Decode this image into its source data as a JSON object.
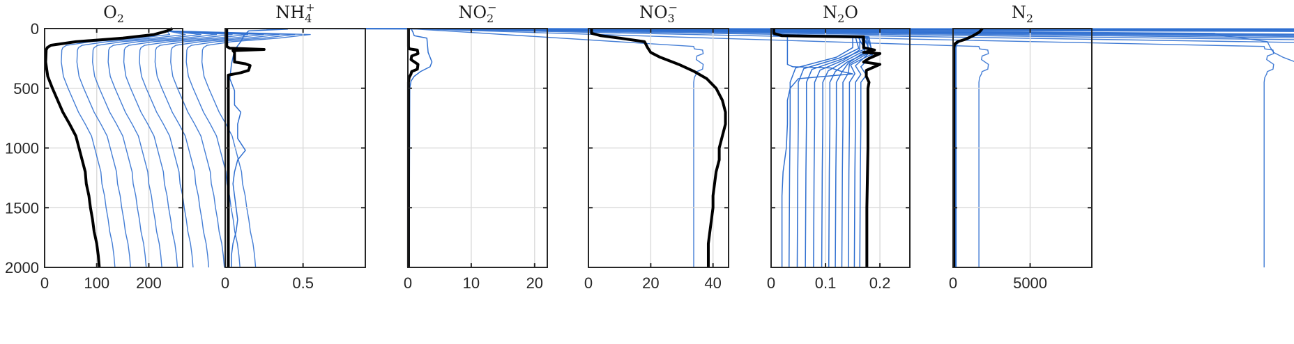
{
  "figure": {
    "y_ticks": [
      "0",
      "500",
      "1000",
      "1500",
      "2000"
    ]
  },
  "chart_data": [
    {
      "type": "line",
      "title_main": "O",
      "title_sub": "2",
      "title_sup": "",
      "title_tail": "",
      "xlim": [
        0,
        265
      ],
      "ylim": [
        0,
        2000
      ],
      "y_reversed": true,
      "grid": true,
      "x_ticks": [
        0,
        100,
        200
      ],
      "x_tick_labels": [
        "0",
        "100",
        "200"
      ],
      "y_ticks": [
        0,
        500,
        1000,
        1500,
        2000
      ],
      "thin_count": 10,
      "color_thin": "#2f6fd0",
      "color_final": "#000000",
      "thin_spread": [
        [
          0,
          20
        ],
        [
          60,
          10
        ],
        [
          150,
          5
        ],
        [
          300,
          0
        ]
      ],
      "final": [
        [
          245,
          0
        ],
        [
          235,
          20
        ],
        [
          210,
          50
        ],
        [
          150,
          80
        ],
        [
          60,
          110
        ],
        [
          12,
          140
        ],
        [
          5,
          160
        ],
        [
          3,
          180
        ],
        [
          2,
          280
        ],
        [
          6,
          400
        ],
        [
          15,
          500
        ],
        [
          25,
          600
        ],
        [
          35,
          700
        ],
        [
          48,
          800
        ],
        [
          60,
          900
        ],
        [
          66,
          1000
        ],
        [
          72,
          1100
        ],
        [
          78,
          1200
        ],
        [
          80,
          1300
        ],
        [
          85,
          1400
        ],
        [
          88,
          1500
        ],
        [
          92,
          1600
        ],
        [
          95,
          1700
        ],
        [
          100,
          1800
        ],
        [
          103,
          1900
        ],
        [
          105,
          2000
        ]
      ],
      "extra_lines": []
    },
    {
      "type": "line",
      "title_main": "NH",
      "title_sub": "4",
      "title_sup": "+",
      "title_tail": "",
      "xlim": [
        0,
        0.9
      ],
      "ylim": [
        0,
        2000
      ],
      "y_reversed": true,
      "grid": true,
      "x_ticks": [
        0,
        0.5
      ],
      "x_tick_labels": [
        "0",
        "0.5"
      ],
      "y_ticks": [
        0,
        500,
        1000,
        1500,
        2000
      ],
      "thin_count": 10,
      "color_thin": "#2f6fd0",
      "color_final": "#000000",
      "thin_spread": [
        [
          0,
          0
        ],
        [
          150,
          0
        ],
        [
          180,
          -0.12
        ],
        [
          260,
          -0.06
        ],
        [
          320,
          -0.08
        ],
        [
          380,
          -0.03
        ],
        [
          420,
          0
        ]
      ],
      "final": [
        [
          0.01,
          0
        ],
        [
          0.01,
          150
        ],
        [
          0.03,
          165
        ],
        [
          0.25,
          175
        ],
        [
          0.05,
          185
        ],
        [
          0.06,
          200
        ],
        [
          0.06,
          280
        ],
        [
          0.13,
          295
        ],
        [
          0.16,
          310
        ],
        [
          0.15,
          350
        ],
        [
          0.1,
          370
        ],
        [
          0.02,
          390
        ],
        [
          0.02,
          2000
        ]
      ],
      "extra_lines": [
        {
          "color": "#2f6fd0",
          "width": 1.5,
          "points": [
            [
              0.02,
              0
            ],
            [
              0.4,
              5
            ],
            [
              0.15,
              20
            ],
            [
              0.12,
              60
            ],
            [
              0.1,
              110
            ],
            [
              0.06,
              180
            ],
            [
              0.04,
              300
            ],
            [
              0.03,
              420
            ],
            [
              0.06,
              520
            ],
            [
              0.06,
              640
            ],
            [
              0.1,
              700
            ],
            [
              0.08,
              800
            ],
            [
              0.08,
              920
            ],
            [
              0.13,
              1020
            ],
            [
              0.08,
              1100
            ],
            [
              0.06,
              1200
            ],
            [
              0.05,
              1300
            ],
            [
              0.06,
              1400
            ],
            [
              0.07,
              1500
            ],
            [
              0.08,
              1600
            ],
            [
              0.07,
              1700
            ],
            [
              0.05,
              1800
            ],
            [
              0.04,
              1900
            ],
            [
              0.04,
              2000
            ]
          ]
        }
      ]
    },
    {
      "type": "line",
      "title_main": "NO",
      "title_sub": "2",
      "title_sup": "−",
      "title_tail": "",
      "xlim": [
        0,
        22
      ],
      "ylim": [
        0,
        2000
      ],
      "y_reversed": true,
      "grid": true,
      "x_ticks": [
        0,
        10,
        20
      ],
      "x_tick_labels": [
        "0",
        "10",
        "20"
      ],
      "y_ticks": [
        0,
        500,
        1000,
        1500,
        2000
      ],
      "thin_count": 10,
      "color_thin": "#2f6fd0",
      "color_final": "#000000",
      "thin_spread": [
        [
          0,
          0.4
        ],
        [
          200,
          0.5
        ],
        [
          300,
          0.6
        ],
        [
          400,
          0.2
        ],
        [
          450,
          0
        ]
      ],
      "final": [
        [
          0.1,
          0
        ],
        [
          0.1,
          150
        ],
        [
          0.2,
          170
        ],
        [
          1.5,
          180
        ],
        [
          1.6,
          210
        ],
        [
          0.6,
          230
        ],
        [
          0.5,
          260
        ],
        [
          1.6,
          300
        ],
        [
          1.5,
          340
        ],
        [
          0.6,
          360
        ],
        [
          0.5,
          380
        ],
        [
          0.2,
          410
        ],
        [
          0.1,
          450
        ],
        [
          0.1,
          2000
        ]
      ],
      "extra_lines": [
        {
          "color": "#2f6fd0",
          "width": 1.5,
          "points": [
            [
              0.5,
              0
            ],
            [
              0.8,
              30
            ],
            [
              1.0,
              60
            ],
            [
              3.0,
              80
            ],
            [
              3.2,
              200
            ],
            [
              3.8,
              280
            ],
            [
              3.5,
              320
            ],
            [
              2.0,
              360
            ],
            [
              1.0,
              400
            ],
            [
              0.5,
              440
            ],
            [
              0.3,
              500
            ],
            [
              0.2,
              2000
            ]
          ]
        }
      ]
    },
    {
      "type": "line",
      "title_main": "NO",
      "title_sub": "3",
      "title_sup": "−",
      "title_tail": "",
      "xlim": [
        0,
        45
      ],
      "ylim": [
        0,
        2000
      ],
      "y_reversed": true,
      "grid": true,
      "x_ticks": [
        0,
        20,
        40
      ],
      "x_tick_labels": [
        "0",
        "20",
        "40"
      ],
      "y_ticks": [
        0,
        500,
        1000,
        1500,
        2000
      ],
      "thin_count": 10,
      "color_thin": "#2f6fd0",
      "color_final": "#000000",
      "thin_spread": [
        [
          0,
          1
        ],
        [
          60,
          8
        ],
        [
          120,
          6
        ],
        [
          200,
          4
        ],
        [
          300,
          3
        ],
        [
          400,
          1
        ],
        [
          500,
          0.5
        ],
        [
          1000,
          0.8
        ],
        [
          2000,
          0.5
        ]
      ],
      "final": [
        [
          1,
          0
        ],
        [
          1,
          40
        ],
        [
          4,
          60
        ],
        [
          10,
          80
        ],
        [
          18,
          110
        ],
        [
          19,
          160
        ],
        [
          20,
          200
        ],
        [
          23,
          240
        ],
        [
          29,
          300
        ],
        [
          34,
          360
        ],
        [
          38,
          420
        ],
        [
          41,
          500
        ],
        [
          43,
          600
        ],
        [
          44,
          700
        ],
        [
          44,
          800
        ],
        [
          43,
          900
        ],
        [
          42,
          1000
        ],
        [
          42,
          1100
        ],
        [
          41,
          1200
        ],
        [
          40.5,
          1300
        ],
        [
          40,
          1400
        ],
        [
          40,
          1500
        ],
        [
          39.5,
          1600
        ],
        [
          39,
          1700
        ],
        [
          38.5,
          1800
        ],
        [
          38.5,
          1900
        ],
        [
          38.5,
          2000
        ]
      ],
      "extra_lines": []
    },
    {
      "type": "line",
      "title_main": "N",
      "title_sub": "2",
      "title_sup": "",
      "title_tail": "O",
      "xlim": [
        0,
        0.255
      ],
      "ylim": [
        0,
        2000
      ],
      "y_reversed": true,
      "grid": true,
      "x_ticks": [
        0,
        0.1,
        0.2
      ],
      "x_tick_labels": [
        "0",
        "0.1",
        "0.2"
      ],
      "y_ticks": [
        0,
        500,
        1000,
        1500,
        2000
      ],
      "thin_count": 11,
      "color_thin": "#2f6fd0",
      "color_final": "#000000",
      "thin_spread": [],
      "final": [
        [
          0.005,
          0
        ],
        [
          0.005,
          40
        ],
        [
          0.02,
          60
        ],
        [
          0.17,
          70
        ],
        [
          0.17,
          160
        ],
        [
          0.19,
          180
        ],
        [
          0.17,
          200
        ],
        [
          0.2,
          210
        ],
        [
          0.18,
          250
        ],
        [
          0.17,
          280
        ],
        [
          0.2,
          300
        ],
        [
          0.19,
          320
        ],
        [
          0.175,
          350
        ],
        [
          0.175,
          400
        ],
        [
          0.18,
          450
        ],
        [
          0.178,
          500
        ],
        [
          0.178,
          1000
        ],
        [
          0.176,
          1500
        ],
        [
          0.176,
          2000
        ]
      ],
      "extra_lines": [
        {
          "color": "#2f6fd0",
          "width": 1.5,
          "points": [
            [
              0.005,
              0
            ],
            [
              0.005,
              40
            ],
            [
              0.02,
              60
            ],
            [
              0.03,
              70
            ],
            [
              0.03,
              300
            ],
            [
              0.04,
              320
            ],
            [
              0.11,
              330
            ],
            [
              0.13,
              360
            ],
            [
              0.15,
              380
            ],
            [
              0.05,
              420
            ],
            [
              0.035,
              500
            ],
            [
              0.03,
              600
            ],
            [
              0.03,
              800
            ],
            [
              0.028,
              1000
            ],
            [
              0.022,
              1200
            ],
            [
              0.02,
              1400
            ],
            [
              0.02,
              1600
            ],
            [
              0.02,
              2000
            ]
          ]
        }
      ],
      "fan": {
        "final_x": [
          0.035,
          0.05,
          0.065,
          0.08,
          0.095,
          0.108,
          0.12,
          0.132,
          0.144,
          0.155,
          0.165
        ],
        "top_x": [
          0.15,
          0.155,
          0.16,
          0.163,
          0.166,
          0.17,
          0.172,
          0.174,
          0.176,
          0.178,
          0.18
        ]
      }
    },
    {
      "type": "line",
      "title_main": "N",
      "title_sub": "2",
      "title_sup": "",
      "title_tail": "",
      "xlim": [
        0,
        9000
      ],
      "ylim": [
        0,
        2000
      ],
      "y_reversed": true,
      "grid": true,
      "x_ticks": [
        0,
        5000
      ],
      "x_tick_labels": [
        "0",
        "5000"
      ],
      "y_ticks": [
        0,
        500,
        1000,
        1500,
        2000
      ],
      "thin_count": 10,
      "color_thin": "#2f6fd0",
      "color_final": "#000000",
      "thin_spread": [
        [
          0,
          0
        ],
        [
          150,
          0
        ]
      ],
      "final": [
        [
          1900,
          0
        ],
        [
          1700,
          30
        ],
        [
          1300,
          60
        ],
        [
          800,
          90
        ],
        [
          300,
          110
        ],
        [
          100,
          130
        ],
        [
          50,
          160
        ],
        [
          50,
          2000
        ]
      ],
      "extra_lines": []
    }
  ]
}
